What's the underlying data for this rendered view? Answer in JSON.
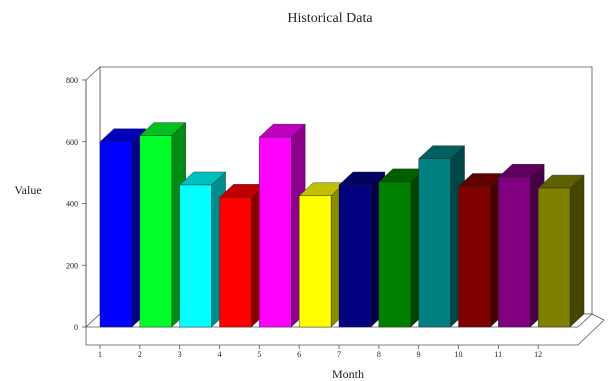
{
  "chart_data": {
    "type": "bar",
    "title": "Historical Data",
    "xlabel": "Month",
    "ylabel": "Value",
    "categories": [
      "1",
      "2",
      "3",
      "4",
      "5",
      "6",
      "7",
      "8",
      "9",
      "10",
      "11",
      "12"
    ],
    "values": [
      600,
      620,
      460,
      420,
      615,
      425,
      460,
      470,
      545,
      455,
      485,
      450
    ],
    "colors": [
      "#0000ff",
      "#00ff2a",
      "#00ffff",
      "#ff0000",
      "#ff00ff",
      "#ffff00",
      "#000080",
      "#008000",
      "#008080",
      "#800000",
      "#800080",
      "#808000"
    ],
    "ylim": [
      0,
      800
    ],
    "yticks": [
      "0",
      "200",
      "400",
      "600",
      "800"
    ],
    "grid": false,
    "style": "3d"
  }
}
